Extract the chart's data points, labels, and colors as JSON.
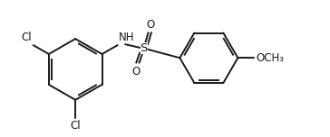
{
  "background_color": "#ffffff",
  "line_color": "#1a1a1a",
  "line_width": 1.4,
  "font_size": 8.5,
  "figsize": [
    3.64,
    1.52
  ],
  "dpi": 100,
  "xlim": [
    0.0,
    7.2
  ],
  "ylim": [
    0.2,
    3.4
  ]
}
